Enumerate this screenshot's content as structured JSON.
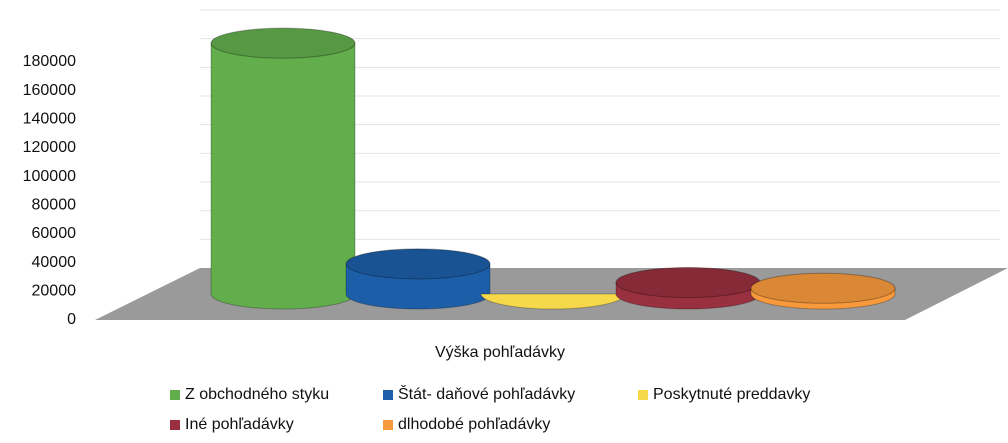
{
  "chart_data": {
    "type": "bar",
    "categories": [
      "Výška pohľadávky"
    ],
    "series": [
      {
        "name": "Z obchodného styku",
        "color": "#62ad4c",
        "values": [
          175000
        ]
      },
      {
        "name": "Štát- daňové pohľadávky",
        "color": "#1d5ea8",
        "values": [
          21000
        ]
      },
      {
        "name": "Poskytnuté preddavky",
        "color": "#f5d94a",
        "values": [
          0
        ]
      },
      {
        "name": "Iné pohľadávky",
        "color": "#993040",
        "values": [
          8000
        ]
      },
      {
        "name": "dlhodobé pohľadávky",
        "color": "#f89a3c",
        "values": [
          4000
        ]
      }
    ],
    "ylim": [
      0,
      180000
    ],
    "yticks": [
      0,
      20000,
      40000,
      60000,
      80000,
      100000,
      120000,
      140000,
      160000,
      180000
    ],
    "grid": true
  }
}
